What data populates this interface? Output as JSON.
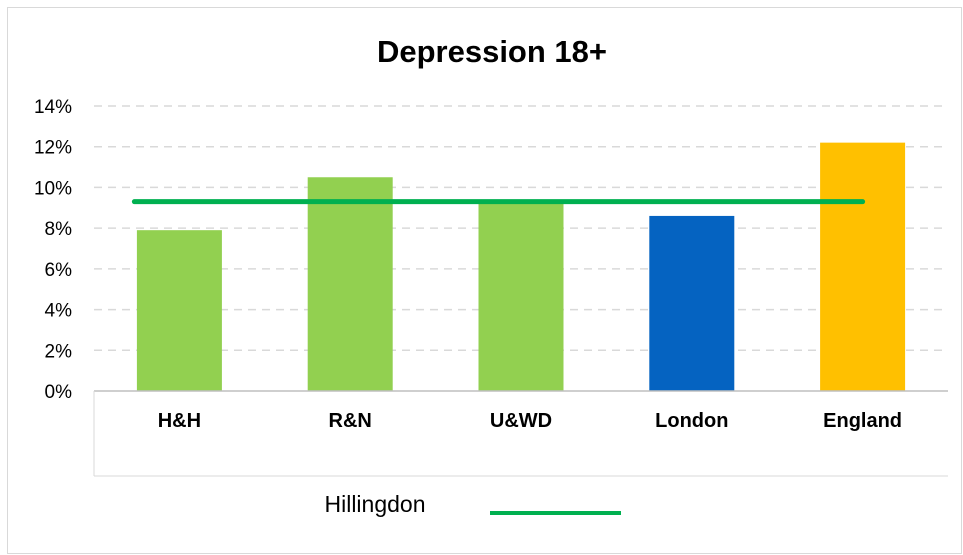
{
  "chart_data": {
    "type": "bar",
    "title": "Depression 18+",
    "categories": [
      "H&H",
      "R&N",
      "U&WD",
      "London",
      "England"
    ],
    "values": [
      7.9,
      10.5,
      9.2,
      8.6,
      12.2
    ],
    "bar_colors": [
      "#92d050",
      "#92d050",
      "#92d050",
      "#0563c1",
      "#ffc000"
    ],
    "ylim": [
      0,
      14
    ],
    "yticks": [
      0,
      2,
      4,
      6,
      8,
      10,
      12,
      14
    ],
    "ytick_labels": [
      "0%",
      "2%",
      "4%",
      "6%",
      "8%",
      "10%",
      "12%",
      "14%"
    ],
    "grid": true,
    "reference_line": {
      "name": "Hillingdon",
      "value": 9.3,
      "color": "#00b050"
    },
    "legend": {
      "position": "bottom",
      "entries": [
        "Hillingdon"
      ]
    }
  }
}
